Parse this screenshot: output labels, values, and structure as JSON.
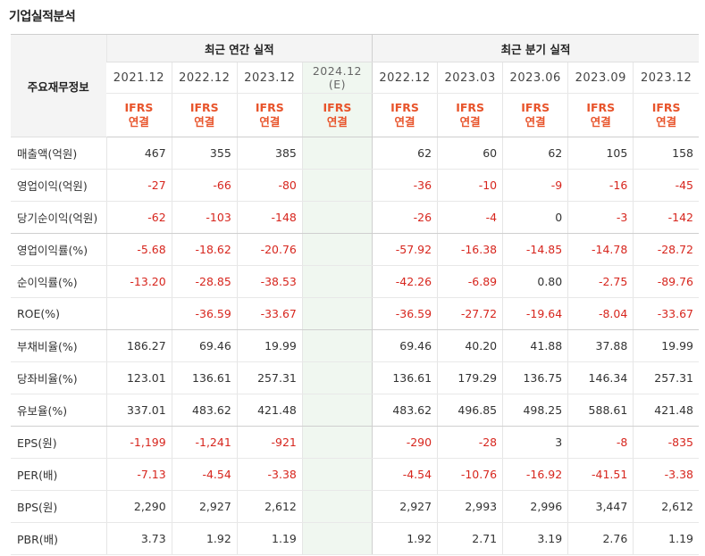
{
  "title": "기업실적분석",
  "label_header": "주요재무정보",
  "groups": {
    "annual": "최근 연간 실적",
    "quarterly": "최근 분기 실적"
  },
  "annual_periods": [
    "2021.12",
    "2022.12",
    "2023.12"
  ],
  "estimate_period": {
    "year": "2024.12",
    "tag": "(E)"
  },
  "quarter_periods": [
    "2022.12",
    "2023.03",
    "2023.06",
    "2023.09",
    "2023.12"
  ],
  "type_line1": "IFRS",
  "type_line2": "연결",
  "rows": [
    {
      "label": "매출액(억원)",
      "annual": [
        "467",
        "355",
        "385"
      ],
      "est": "",
      "quarter": [
        "62",
        "60",
        "62",
        "105",
        "158"
      ]
    },
    {
      "label": "영업이익(억원)",
      "annual": [
        "-27",
        "-66",
        "-80"
      ],
      "est": "",
      "quarter": [
        "-36",
        "-10",
        "-9",
        "-16",
        "-45"
      ]
    },
    {
      "label": "당기순이익(억원)",
      "annual": [
        "-62",
        "-103",
        "-148"
      ],
      "est": "",
      "quarter": [
        "-26",
        "-4",
        "0",
        "-3",
        "-142"
      ]
    },
    {
      "label": "영업이익률(%)",
      "annual": [
        "-5.68",
        "-18.62",
        "-20.76"
      ],
      "est": "",
      "quarter": [
        "-57.92",
        "-16.38",
        "-14.85",
        "-14.78",
        "-28.72"
      ]
    },
    {
      "label": "순이익률(%)",
      "annual": [
        "-13.20",
        "-28.85",
        "-38.53"
      ],
      "est": "",
      "quarter": [
        "-42.26",
        "-6.89",
        "0.80",
        "-2.75",
        "-89.76"
      ]
    },
    {
      "label": "ROE(%)",
      "annual": [
        "",
        "-36.59",
        "-33.67"
      ],
      "est": "",
      "quarter": [
        "-36.59",
        "-27.72",
        "-19.64",
        "-8.04",
        "-33.67"
      ]
    },
    {
      "label": "부채비율(%)",
      "annual": [
        "186.27",
        "69.46",
        "19.99"
      ],
      "est": "",
      "quarter": [
        "69.46",
        "40.20",
        "41.88",
        "37.88",
        "19.99"
      ]
    },
    {
      "label": "당좌비율(%)",
      "annual": [
        "123.01",
        "136.61",
        "257.31"
      ],
      "est": "",
      "quarter": [
        "136.61",
        "179.29",
        "136.75",
        "146.34",
        "257.31"
      ]
    },
    {
      "label": "유보율(%)",
      "annual": [
        "337.01",
        "483.62",
        "421.48"
      ],
      "est": "",
      "quarter": [
        "483.62",
        "496.85",
        "498.25",
        "588.61",
        "421.48"
      ]
    },
    {
      "label": "EPS(원)",
      "annual": [
        "-1,199",
        "-1,241",
        "-921"
      ],
      "est": "",
      "quarter": [
        "-290",
        "-28",
        "3",
        "-8",
        "-835"
      ]
    },
    {
      "label": "PER(배)",
      "annual": [
        "-7.13",
        "-4.54",
        "-3.38"
      ],
      "est": "",
      "quarter": [
        "-4.54",
        "-10.76",
        "-16.92",
        "-41.51",
        "-3.38"
      ]
    },
    {
      "label": "BPS(원)",
      "annual": [
        "2,290",
        "2,927",
        "2,612"
      ],
      "est": "",
      "quarter": [
        "2,927",
        "2,993",
        "2,996",
        "3,447",
        "2,612"
      ]
    },
    {
      "label": "PBR(배)",
      "annual": [
        "3.73",
        "1.92",
        "1.19"
      ],
      "est": "",
      "quarter": [
        "1.92",
        "2.71",
        "3.19",
        "2.76",
        "1.19"
      ]
    }
  ],
  "group_breaks": [
    2,
    5,
    8
  ]
}
